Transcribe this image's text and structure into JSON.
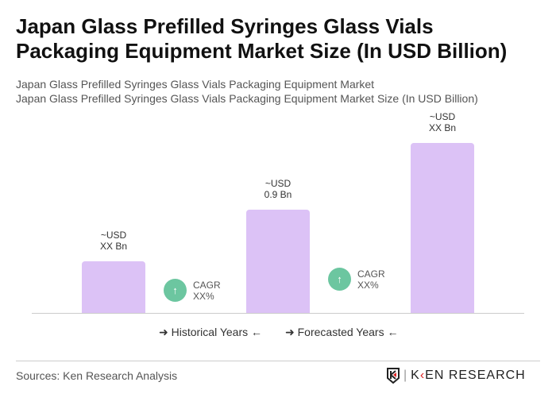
{
  "title": "Japan Glass Prefilled Syringes Glass Vials Packaging Equipment Market Size (In USD Billion)",
  "subtitle1": "Japan Glass Prefilled Syringes Glass Vials Packaging Equipment Market",
  "subtitle2": "Japan Glass Prefilled Syringes Glass Vials Packaging Equipment Market Size (In USD Billion)",
  "chart_data": {
    "type": "bar",
    "categories": [
      "",
      "",
      ""
    ],
    "values": [
      0.45,
      0.9,
      1.48
    ],
    "data_labels": [
      [
        "~USD",
        "XX Bn"
      ],
      [
        "~USD",
        "0.9 Bn"
      ],
      [
        "~USD",
        "XX Bn"
      ]
    ],
    "cagr": [
      [
        "CAGR",
        "XX%"
      ],
      [
        "CAGR",
        "XX%"
      ]
    ],
    "legend": [
      "Historical Years",
      "Forecasted Years"
    ],
    "bar_color": "#dcc2f6",
    "cagr_color": "#6cc6a0",
    "grid": false
  },
  "source": "Sources: Ken Research Analysis",
  "logo": "KEN RESEARCH"
}
